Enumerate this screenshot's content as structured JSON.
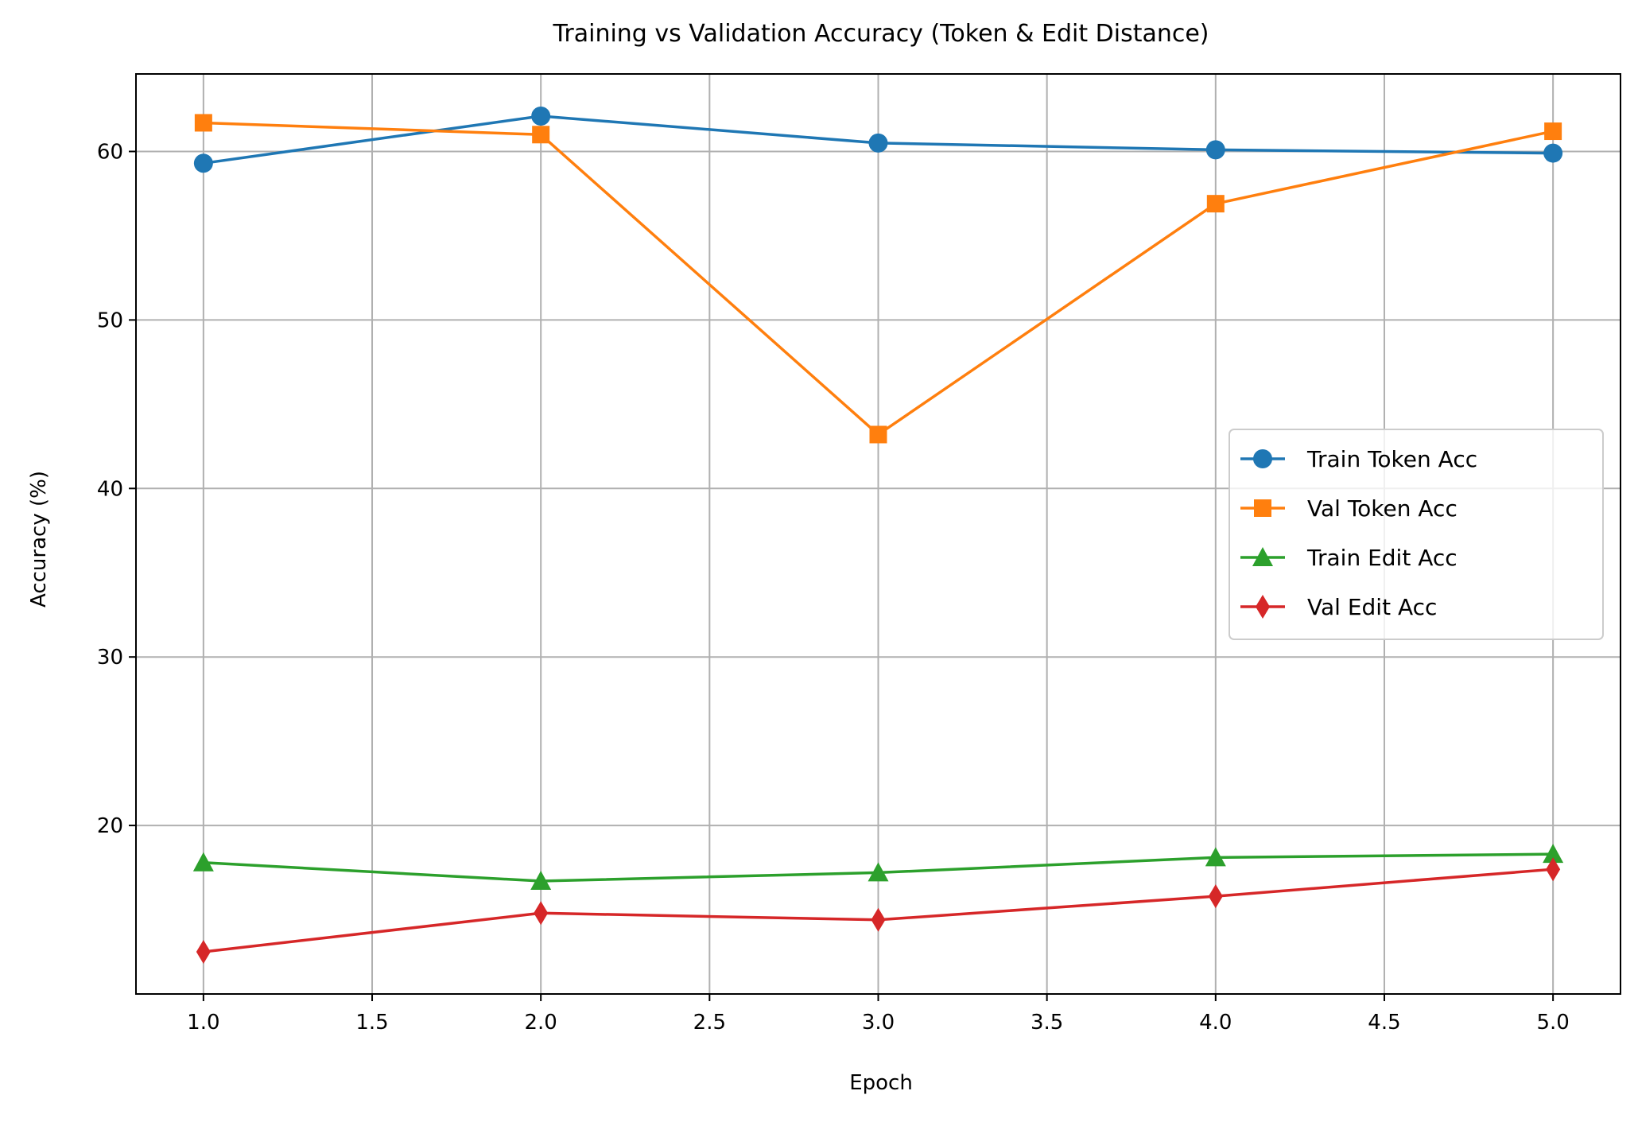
{
  "chart_data": {
    "type": "line",
    "title": "Training vs Validation Accuracy (Token & Edit Distance)",
    "xlabel": "Epoch",
    "ylabel": "Accuracy (%)",
    "xlim": [
      0.8,
      5.2
    ],
    "ylim": [
      10.0,
      64.6
    ],
    "x_ticks": [
      1.0,
      1.5,
      2.0,
      2.5,
      3.0,
      3.5,
      4.0,
      4.5,
      5.0
    ],
    "x_tick_labels": [
      "1.0",
      "1.5",
      "2.0",
      "2.5",
      "3.0",
      "3.5",
      "4.0",
      "4.5",
      "5.0"
    ],
    "y_ticks": [
      20,
      30,
      40,
      50,
      60
    ],
    "y_tick_labels": [
      "20",
      "30",
      "40",
      "50",
      "60"
    ],
    "grid": true,
    "legend_position": "center-right",
    "x": [
      1,
      2,
      3,
      4,
      5
    ],
    "series": [
      {
        "name": "Train Token Acc",
        "values": [
          59.3,
          62.1,
          60.5,
          60.1,
          59.9
        ],
        "color": "#1f77b4",
        "marker": "circle"
      },
      {
        "name": "Val Token Acc",
        "values": [
          61.7,
          61.0,
          43.2,
          56.9,
          61.2
        ],
        "color": "#ff7f0e",
        "marker": "square"
      },
      {
        "name": "Train Edit Acc",
        "values": [
          17.8,
          16.7,
          17.2,
          18.1,
          18.3
        ],
        "color": "#2ca02c",
        "marker": "triangle"
      },
      {
        "name": "Val Edit Acc",
        "values": [
          12.5,
          14.8,
          14.4,
          15.8,
          17.4
        ],
        "color": "#d62728",
        "marker": "diamond"
      }
    ]
  }
}
